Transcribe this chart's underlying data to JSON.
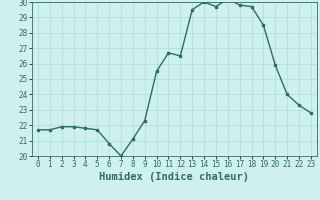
{
  "x": [
    0,
    1,
    2,
    3,
    4,
    5,
    6,
    7,
    8,
    9,
    10,
    11,
    12,
    13,
    14,
    15,
    16,
    17,
    18,
    19,
    20,
    21,
    22,
    23
  ],
  "y": [
    21.7,
    21.7,
    21.9,
    21.9,
    21.8,
    21.7,
    20.8,
    20.0,
    21.1,
    22.3,
    25.5,
    26.7,
    26.5,
    29.5,
    30.0,
    29.7,
    30.2,
    29.8,
    29.7,
    28.5,
    25.9,
    24.0,
    23.3,
    22.8
  ],
  "line_color": "#2e6e5e",
  "marker": "s",
  "marker_size": 2,
  "line_width": 1.0,
  "bg_color": "#cff0f0",
  "grid_color": "#aadddd",
  "xlabel": "Humidex (Indice chaleur)",
  "ylim": [
    20,
    30
  ],
  "yticks": [
    20,
    21,
    22,
    23,
    24,
    25,
    26,
    27,
    28,
    29,
    30
  ],
  "xticks": [
    0,
    1,
    2,
    3,
    4,
    5,
    6,
    7,
    8,
    9,
    10,
    11,
    12,
    13,
    14,
    15,
    16,
    17,
    18,
    19,
    20,
    21,
    22,
    23
  ],
  "tick_fontsize": 5.5,
  "label_fontsize": 7.5
}
